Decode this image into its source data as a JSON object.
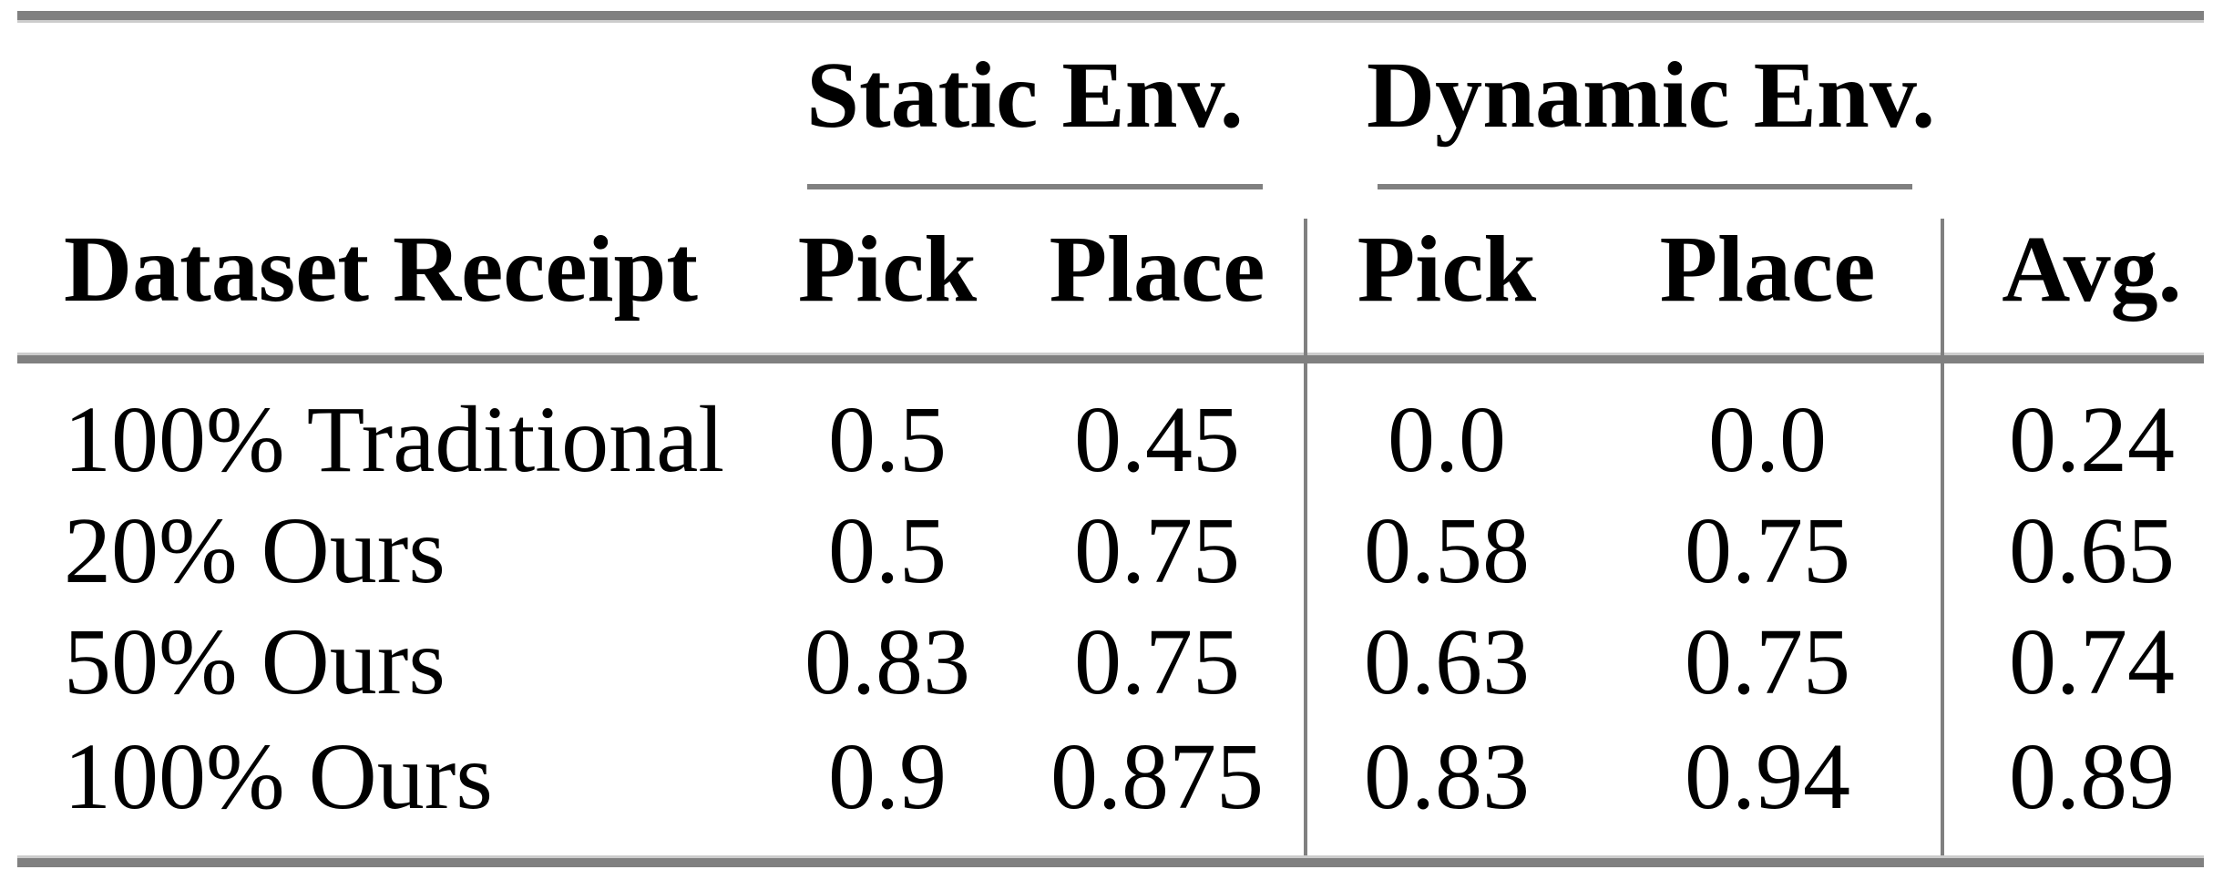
{
  "colors": {
    "rule_dark": "#808080",
    "rule_light": "#cccccc",
    "text": "#000000",
    "background": "#ffffff"
  },
  "table": {
    "group_headers": [
      "Static Env.",
      "Dynamic Env."
    ],
    "columns": {
      "row_label": "Dataset Receipt",
      "static": [
        "Pick",
        "Place"
      ],
      "dynamic": [
        "Pick",
        "Place"
      ],
      "avg": "Avg."
    },
    "rows": [
      {
        "label": "100% Traditional",
        "values": [
          "0.5",
          "0.45",
          "0.0",
          "0.0",
          "0.24"
        ]
      },
      {
        "label": "20% Ours",
        "values": [
          "0.5",
          "0.75",
          "0.58",
          "0.75",
          "0.65"
        ]
      },
      {
        "label": "50% Ours",
        "values": [
          "0.83",
          "0.75",
          "0.63",
          "0.75",
          "0.74"
        ]
      },
      {
        "label": "100% Ours",
        "values": [
          "0.9",
          "0.875",
          "0.83",
          "0.94",
          "0.89"
        ]
      }
    ]
  }
}
